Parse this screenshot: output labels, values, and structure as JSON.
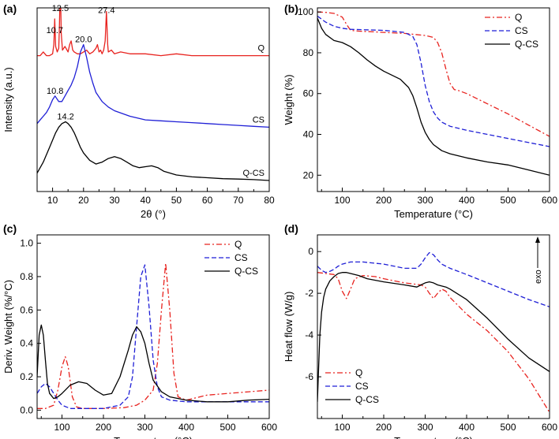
{
  "figure": {
    "panels": [
      "(a)",
      "(b)",
      "(c)",
      "(d)"
    ]
  },
  "colors": {
    "Q": "#e8231f",
    "CS": "#1f1fd6",
    "Q-CS": "#000000",
    "axis": "#000000"
  },
  "chart_data": [
    {
      "panel": "(a)",
      "type": "line",
      "title": "",
      "xlabel": "2θ (°)",
      "ylabel": "Intensity (a.u.)",
      "xlim": [
        5,
        80
      ],
      "ylim": [
        0,
        1
      ],
      "xticks": [
        10,
        20,
        30,
        40,
        50,
        60,
        70,
        80
      ],
      "yticks": [],
      "grid": false,
      "series": [
        {
          "name": "Q",
          "label": "Q",
          "color": "#e8231f",
          "style": "solid",
          "offset": 0.74,
          "x": [
            5,
            6,
            7,
            8,
            9,
            10,
            10.4,
            10.7,
            11,
            11.5,
            12,
            12.2,
            12.5,
            12.8,
            13.2,
            14,
            15,
            15.5,
            16,
            16.5,
            17,
            18,
            19,
            20,
            21,
            22,
            23,
            24,
            24.5,
            25,
            25.5,
            26,
            26.5,
            27,
            27.4,
            27.8,
            28,
            29,
            30,
            32,
            35,
            40,
            45,
            50,
            55,
            60,
            65,
            70,
            75,
            80
          ],
          "y": [
            0,
            0,
            0.02,
            0,
            0,
            0.01,
            0.06,
            0.2,
            0.05,
            0.02,
            0.04,
            0.15,
            0.39,
            0.12,
            0.03,
            0.05,
            0.02,
            0.06,
            0.08,
            0.03,
            0.02,
            0.01,
            0.01,
            0.02,
            0.03,
            0.01,
            0.02,
            0.04,
            0.06,
            0.02,
            0.03,
            0.01,
            0.03,
            0.08,
            0.24,
            0.06,
            0.02,
            0.03,
            0.01,
            0.02,
            0.01,
            0.01,
            0,
            0.01,
            0,
            0,
            0,
            0,
            0,
            0
          ]
        },
        {
          "name": "CS",
          "label": "CS",
          "color": "#1f1fd6",
          "style": "solid",
          "offset": 0.35,
          "x": [
            5,
            6,
            7,
            8,
            9,
            10,
            10.8,
            12,
            13,
            14,
            15,
            16,
            17,
            18,
            19,
            20,
            21,
            22,
            23,
            24,
            26,
            28,
            30,
            35,
            40,
            45,
            50,
            55,
            60,
            65,
            70,
            75,
            80
          ],
          "y": [
            0.02,
            0.04,
            0.06,
            0.08,
            0.11,
            0.15,
            0.17,
            0.14,
            0.14,
            0.17,
            0.2,
            0.23,
            0.27,
            0.33,
            0.41,
            0.45,
            0.38,
            0.3,
            0.24,
            0.19,
            0.14,
            0.11,
            0.09,
            0.06,
            0.04,
            0.035,
            0.03,
            0.025,
            0.02,
            0.015,
            0.01,
            0.005,
            0
          ]
        },
        {
          "name": "Q-CS",
          "label": "Q-CS",
          "color": "#000000",
          "style": "solid",
          "offset": 0.06,
          "x": [
            5,
            7,
            9,
            10,
            11,
            12,
            13,
            14.2,
            15,
            16,
            17,
            18,
            19,
            20,
            22,
            24,
            26,
            28,
            30,
            32,
            34,
            36,
            38,
            40,
            42,
            44,
            46,
            50,
            55,
            60,
            65,
            70,
            75,
            80
          ],
          "y": [
            0.04,
            0.1,
            0.18,
            0.22,
            0.26,
            0.29,
            0.31,
            0.32,
            0.31,
            0.29,
            0.26,
            0.22,
            0.18,
            0.15,
            0.11,
            0.09,
            0.1,
            0.12,
            0.13,
            0.12,
            0.1,
            0.08,
            0.07,
            0.075,
            0.08,
            0.07,
            0.05,
            0.03,
            0.02,
            0.015,
            0.01,
            0.008,
            0.005,
            0
          ]
        }
      ],
      "annotations": [
        {
          "text": "12.5",
          "x": 12.5,
          "y": 1.0
        },
        {
          "text": "10.7",
          "x": 10.7,
          "y": 0.88
        },
        {
          "text": "27.4",
          "x": 27.4,
          "y": 0.99
        },
        {
          "text": "20.0",
          "x": 20.0,
          "y": 0.83
        },
        {
          "text": "10.8",
          "x": 10.8,
          "y": 0.55
        },
        {
          "text": "14.2",
          "x": 14.2,
          "y": 0.41
        }
      ]
    },
    {
      "panel": "(b)",
      "type": "line",
      "title": "",
      "xlabel": "Temperature (°C)",
      "ylabel": "Weight (%)",
      "xlim": [
        40,
        600
      ],
      "ylim": [
        12,
        102
      ],
      "xticks": [
        100,
        200,
        300,
        400,
        500,
        600
      ],
      "yticks": [
        20,
        40,
        60,
        80,
        100
      ],
      "grid": false,
      "legend": "top-right",
      "series": [
        {
          "name": "Q",
          "label": "Q",
          "color": "#e8231f",
          "style": "dashdot",
          "x": [
            40,
            60,
            80,
            100,
            110,
            120,
            140,
            160,
            180,
            200,
            250,
            300,
            320,
            330,
            340,
            350,
            360,
            370,
            380,
            400,
            450,
            500,
            550,
            600
          ],
          "y": [
            100,
            99.8,
            99.3,
            97.5,
            94,
            91,
            90.6,
            90.4,
            90.2,
            90,
            89.5,
            88.5,
            87.5,
            85,
            80,
            72,
            65,
            62,
            61.5,
            60,
            55,
            50,
            44.5,
            39
          ]
        },
        {
          "name": "CS",
          "label": "CS",
          "color": "#1f1fd6",
          "style": "dashed",
          "x": [
            40,
            60,
            80,
            100,
            120,
            150,
            200,
            250,
            270,
            280,
            290,
            300,
            310,
            320,
            330,
            340,
            360,
            400,
            450,
            500,
            550,
            600
          ],
          "y": [
            98,
            95,
            93,
            92,
            91.5,
            91.3,
            91,
            90,
            88,
            84,
            75,
            64,
            56,
            51,
            48,
            46,
            44,
            42,
            40,
            38,
            36,
            34
          ]
        },
        {
          "name": "Q-CS",
          "label": "Q-CS",
          "color": "#000000",
          "style": "solid",
          "x": [
            40,
            50,
            60,
            80,
            100,
            120,
            140,
            160,
            180,
            200,
            220,
            240,
            260,
            270,
            280,
            290,
            300,
            310,
            320,
            340,
            360,
            400,
            450,
            500,
            550,
            600
          ],
          "y": [
            97,
            92,
            89,
            86,
            85,
            83,
            80,
            76.5,
            73.5,
            71,
            69,
            67,
            63,
            59,
            53,
            46,
            41,
            37.5,
            35,
            32,
            30.5,
            28.5,
            26.5,
            25,
            22.5,
            20
          ]
        }
      ]
    },
    {
      "panel": "(c)",
      "type": "line",
      "title": "",
      "xlabel": "Temperature (°C)",
      "ylabel": "Deriv. Weight (%/°C)",
      "xlim": [
        40,
        600
      ],
      "ylim": [
        -0.05,
        1.05
      ],
      "xticks": [
        100,
        200,
        300,
        400,
        500,
        600
      ],
      "yticks": [
        0.0,
        0.2,
        0.4,
        0.6,
        0.8,
        1.0
      ],
      "grid": false,
      "legend": "top-right",
      "series": [
        {
          "name": "Q",
          "label": "Q",
          "color": "#e8231f",
          "style": "dashdot",
          "x": [
            40,
            60,
            80,
            90,
            100,
            108,
            115,
            125,
            135,
            150,
            200,
            250,
            280,
            300,
            320,
            330,
            340,
            350,
            360,
            370,
            380,
            400,
            450,
            500,
            550,
            600
          ],
          "y": [
            0.01,
            0.01,
            0.03,
            0.12,
            0.26,
            0.32,
            0.26,
            0.08,
            0.02,
            0.01,
            0.01,
            0.015,
            0.03,
            0.06,
            0.12,
            0.28,
            0.6,
            0.88,
            0.6,
            0.22,
            0.08,
            0.06,
            0.09,
            0.1,
            0.11,
            0.12
          ]
        },
        {
          "name": "CS",
          "label": "CS",
          "color": "#1f1fd6",
          "style": "dashed",
          "x": [
            40,
            50,
            60,
            70,
            80,
            90,
            100,
            120,
            150,
            200,
            240,
            260,
            270,
            280,
            290,
            300,
            310,
            320,
            330,
            340,
            360,
            400,
            450,
            500,
            550,
            600
          ],
          "y": [
            0.1,
            0.14,
            0.16,
            0.14,
            0.1,
            0.06,
            0.03,
            0.01,
            0.01,
            0.01,
            0.03,
            0.08,
            0.2,
            0.5,
            0.8,
            0.87,
            0.62,
            0.3,
            0.14,
            0.08,
            0.06,
            0.05,
            0.05,
            0.05,
            0.05,
            0.05
          ]
        },
        {
          "name": "Q-CS",
          "label": "Q-CS",
          "color": "#000000",
          "style": "solid",
          "x": [
            40,
            45,
            50,
            55,
            60,
            65,
            70,
            80,
            90,
            100,
            120,
            140,
            160,
            180,
            200,
            220,
            240,
            260,
            270,
            280,
            290,
            300,
            310,
            320,
            340,
            360,
            380,
            400,
            450,
            500,
            550,
            600
          ],
          "y": [
            0.2,
            0.45,
            0.51,
            0.45,
            0.3,
            0.16,
            0.1,
            0.07,
            0.08,
            0.1,
            0.15,
            0.17,
            0.16,
            0.12,
            0.09,
            0.1,
            0.2,
            0.36,
            0.45,
            0.5,
            0.47,
            0.4,
            0.28,
            0.18,
            0.11,
            0.08,
            0.07,
            0.06,
            0.05,
            0.05,
            0.06,
            0.065
          ]
        }
      ]
    },
    {
      "panel": "(d)",
      "type": "line",
      "title": "",
      "xlabel": "Temperature (°C)",
      "ylabel": "Heat flow (W/g)",
      "xlim": [
        40,
        600
      ],
      "ylim": [
        -8,
        0.8
      ],
      "xticks": [
        100,
        200,
        300,
        400,
        500,
        600
      ],
      "yticks": [
        0,
        -2,
        -4,
        -6
      ],
      "grid": false,
      "legend": "bottom-left",
      "annotation_right": "exo",
      "series": [
        {
          "name": "Q",
          "label": "Q",
          "color": "#e8231f",
          "style": "dashdot",
          "x": [
            40,
            60,
            80,
            90,
            100,
            110,
            120,
            130,
            150,
            180,
            200,
            250,
            290,
            300,
            310,
            320,
            330,
            340,
            350,
            360,
            380,
            400,
            450,
            500,
            550,
            600
          ],
          "y": [
            -1.0,
            -1.05,
            -1.1,
            -1.3,
            -1.9,
            -2.25,
            -1.8,
            -1.3,
            -1.15,
            -1.2,
            -1.3,
            -1.5,
            -1.6,
            -1.7,
            -2.0,
            -2.25,
            -2.0,
            -1.8,
            -1.9,
            -2.2,
            -2.6,
            -3.0,
            -3.8,
            -4.8,
            -6.1,
            -7.7
          ]
        },
        {
          "name": "CS",
          "label": "CS",
          "color": "#1f1fd6",
          "style": "dashed",
          "x": [
            40,
            50,
            60,
            70,
            80,
            90,
            100,
            120,
            150,
            200,
            250,
            280,
            290,
            300,
            310,
            320,
            330,
            340,
            360,
            400,
            450,
            500,
            550,
            600
          ],
          "y": [
            -0.7,
            -0.9,
            -1.0,
            -0.95,
            -0.85,
            -0.7,
            -0.6,
            -0.5,
            -0.5,
            -0.6,
            -0.8,
            -0.8,
            -0.6,
            -0.3,
            -0.05,
            -0.15,
            -0.4,
            -0.6,
            -0.8,
            -1.1,
            -1.5,
            -1.9,
            -2.3,
            -2.65
          ]
        },
        {
          "name": "Q-CS",
          "label": "Q-CS",
          "color": "#000000",
          "style": "solid",
          "x": [
            40,
            43,
            46,
            50,
            55,
            60,
            70,
            80,
            90,
            100,
            110,
            120,
            140,
            160,
            200,
            250,
            280,
            290,
            300,
            310,
            320,
            330,
            340,
            350,
            360,
            400,
            450,
            500,
            550,
            600
          ],
          "y": [
            -7.2,
            -5.5,
            -4.0,
            -2.9,
            -2.2,
            -1.8,
            -1.4,
            -1.2,
            -1.05,
            -1.0,
            -1.0,
            -1.05,
            -1.15,
            -1.3,
            -1.45,
            -1.6,
            -1.7,
            -1.6,
            -1.5,
            -1.45,
            -1.5,
            -1.6,
            -1.65,
            -1.7,
            -1.8,
            -2.3,
            -3.2,
            -4.2,
            -5.1,
            -5.75
          ]
        }
      ]
    }
  ]
}
